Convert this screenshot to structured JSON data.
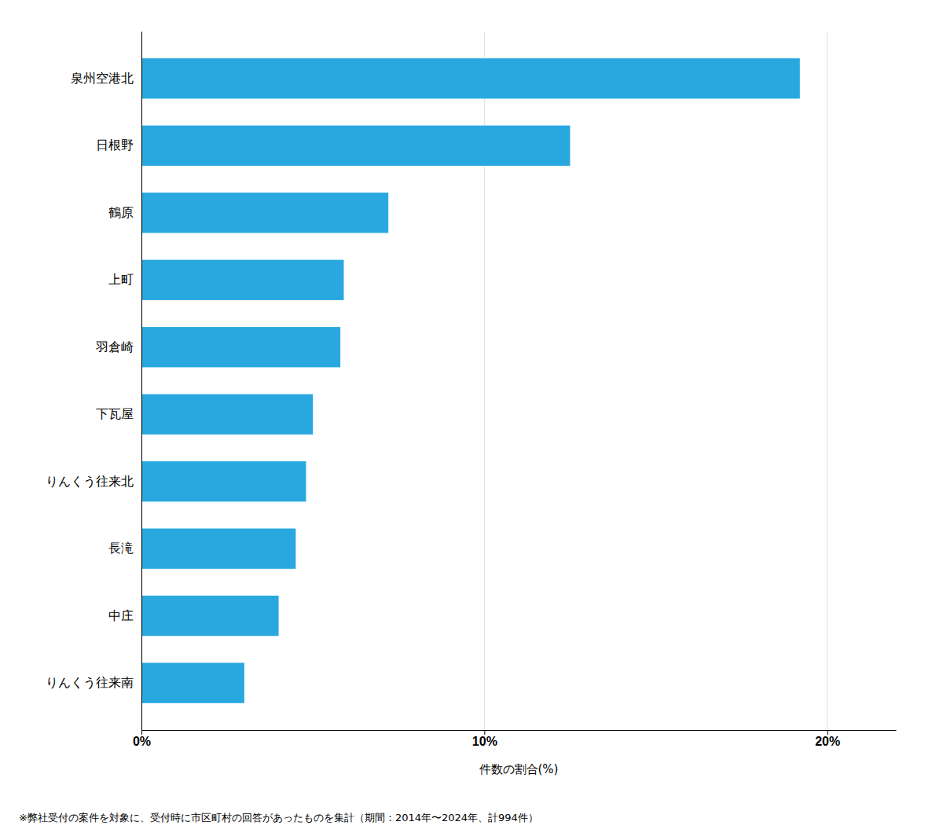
{
  "chart_data": {
    "type": "bar",
    "orientation": "horizontal",
    "categories": [
      "りんくう往来南",
      "中庄",
      "長滝",
      "りんくう往来北",
      "下瓦屋",
      "羽倉崎",
      "上町",
      "鶴原",
      "日根野",
      "泉州空港北"
    ],
    "values": [
      3.0,
      4.0,
      4.5,
      4.8,
      5.0,
      5.8,
      5.9,
      7.2,
      12.5,
      19.2
    ],
    "color": "#29A8E0",
    "xlabel": "件数の割合(%)",
    "xlim": [
      0,
      22
    ],
    "xticks": [
      {
        "value": 0,
        "label": "0%"
      },
      {
        "value": 10,
        "label": "10%"
      },
      {
        "value": 20,
        "label": "20%"
      }
    ],
    "grid": true,
    "footnote": "※弊社受付の案件を対象に、受付時に市区町村の回答があったものを集計（期間：2014年〜2024年、計994件）"
  }
}
